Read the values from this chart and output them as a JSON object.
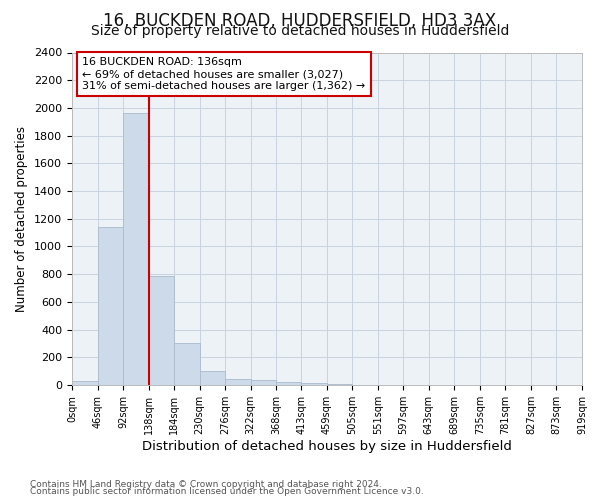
{
  "title": "16, BUCKDEN ROAD, HUDDERSFIELD, HD3 3AX",
  "subtitle": "Size of property relative to detached houses in Huddersfield",
  "xlabel": "Distribution of detached houses by size in Huddersfield",
  "ylabel": "Number of detached properties",
  "footer_line1": "Contains HM Land Registry data © Crown copyright and database right 2024.",
  "footer_line2": "Contains public sector information licensed under the Open Government Licence v3.0.",
  "bar_edges": [
    0,
    46,
    92,
    138,
    184,
    230,
    276,
    322,
    368,
    413,
    459,
    505,
    551,
    597,
    643,
    689,
    735,
    781,
    827,
    873,
    919
  ],
  "bar_heights": [
    30,
    1140,
    1960,
    790,
    300,
    100,
    45,
    35,
    20,
    15,
    5,
    0,
    0,
    0,
    0,
    0,
    0,
    0,
    0,
    0
  ],
  "bar_color": "#cddaea",
  "bar_edge_color": "#aabbcc",
  "subject_line_x": 138,
  "subject_line_color": "#cc0000",
  "annotation_line1": "16 BUCKDEN ROAD: 136sqm",
  "annotation_line2": "← 69% of detached houses are smaller (3,027)",
  "annotation_line3": "31% of semi-detached houses are larger (1,362) →",
  "annotation_box_color": "#cc0000",
  "ylim": [
    0,
    2400
  ],
  "yticks": [
    0,
    200,
    400,
    600,
    800,
    1000,
    1200,
    1400,
    1600,
    1800,
    2000,
    2200,
    2400
  ],
  "xlim": [
    0,
    919
  ],
  "tick_labels": [
    "0sqm",
    "46sqm",
    "92sqm",
    "138sqm",
    "184sqm",
    "230sqm",
    "276sqm",
    "322sqm",
    "368sqm",
    "413sqm",
    "459sqm",
    "505sqm",
    "551sqm",
    "597sqm",
    "643sqm",
    "689sqm",
    "735sqm",
    "781sqm",
    "827sqm",
    "873sqm",
    "919sqm"
  ],
  "grid_color": "#c8d4e0",
  "bg_color": "#edf2f7",
  "title_fontsize": 12,
  "subtitle_fontsize": 10,
  "xlabel_fontsize": 9.5,
  "ylabel_fontsize": 8.5,
  "tick_fontsize": 7,
  "annotation_fontsize": 8,
  "footer_fontsize": 6.5
}
